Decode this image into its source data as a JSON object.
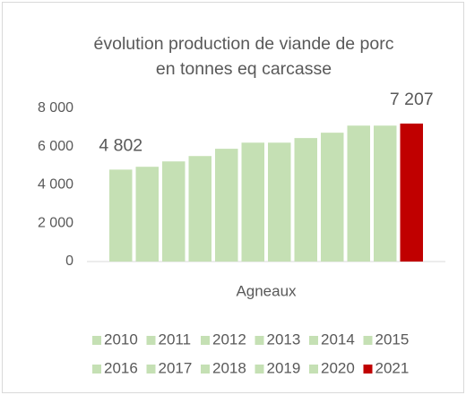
{
  "chart_data": {
    "type": "bar",
    "title": [
      "évolution production de viande de porc",
      "en tonnes eq carcasse"
    ],
    "categories": [
      "Agneaux"
    ],
    "series": [
      {
        "name": "2010",
        "color": "#c5e0b4",
        "values": [
          4802
        ],
        "value_labels": [
          "4 802"
        ]
      },
      {
        "name": "2011",
        "color": "#c5e0b4",
        "values": [
          4950
        ]
      },
      {
        "name": "2012",
        "color": "#c5e0b4",
        "values": [
          5230
        ]
      },
      {
        "name": "2013",
        "color": "#c5e0b4",
        "values": [
          5510
        ]
      },
      {
        "name": "2014",
        "color": "#c5e0b4",
        "values": [
          5890
        ]
      },
      {
        "name": "2015",
        "color": "#c5e0b4",
        "values": [
          6210
        ]
      },
      {
        "name": "2016",
        "color": "#c5e0b4",
        "values": [
          6210
        ]
      },
      {
        "name": "2017",
        "color": "#c5e0b4",
        "values": [
          6450
        ]
      },
      {
        "name": "2018",
        "color": "#c5e0b4",
        "values": [
          6730
        ]
      },
      {
        "name": "2019",
        "color": "#c5e0b4",
        "values": [
          7100
        ]
      },
      {
        "name": "2020",
        "color": "#c5e0b4",
        "values": [
          7100
        ]
      },
      {
        "name": "2021",
        "color": "#c00000",
        "values": [
          7207
        ],
        "value_labels": [
          "7 207"
        ]
      }
    ],
    "ylim": [
      0,
      8000
    ],
    "yticks": [
      0,
      {
        "value": 2000,
        "label": "2 000"
      },
      {
        "value": 4000,
        "label": "4 000"
      },
      {
        "value": 6000,
        "label": "6 000"
      },
      {
        "value": 8000,
        "label": "8 000"
      }
    ],
    "grid": false,
    "legend": "bottom"
  }
}
